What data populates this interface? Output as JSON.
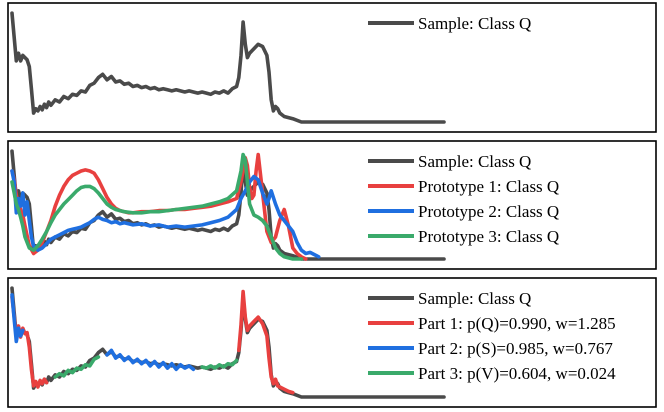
{
  "chart_data": [
    {
      "type": "line",
      "grid": false,
      "legend_position": "top-right",
      "xlim": [
        0,
        200
      ],
      "ylim": [
        0,
        1
      ],
      "series": [
        {
          "name": "Sample: Class Q",
          "color": "#4a4a4a",
          "x": [
            0,
            2,
            3,
            4,
            5,
            6,
            7,
            8,
            9,
            10,
            11,
            12,
            13,
            14,
            15,
            16,
            17,
            18,
            20,
            22,
            24,
            26,
            28,
            30,
            32,
            34,
            36,
            38,
            40,
            42,
            44,
            46,
            48,
            50,
            52,
            54,
            56,
            58,
            60,
            62,
            64,
            66,
            68,
            70,
            72,
            74,
            76,
            78,
            80,
            82,
            84,
            86,
            88,
            90,
            92,
            94,
            96,
            98,
            100,
            102,
            104,
            105,
            106,
            107,
            108,
            109,
            110,
            112,
            114,
            116,
            118,
            119,
            120,
            121,
            122,
            123,
            124,
            126,
            128,
            130,
            134,
            200
          ],
          "y": [
            0.98,
            0.55,
            0.62,
            0.55,
            0.6,
            0.58,
            0.56,
            0.5,
            0.3,
            0.08,
            0.12,
            0.1,
            0.14,
            0.11,
            0.16,
            0.13,
            0.18,
            0.15,
            0.2,
            0.18,
            0.23,
            0.21,
            0.25,
            0.24,
            0.28,
            0.27,
            0.33,
            0.35,
            0.4,
            0.43,
            0.38,
            0.41,
            0.36,
            0.37,
            0.34,
            0.35,
            0.32,
            0.33,
            0.31,
            0.32,
            0.3,
            0.31,
            0.29,
            0.3,
            0.29,
            0.28,
            0.29,
            0.28,
            0.27,
            0.28,
            0.27,
            0.26,
            0.27,
            0.26,
            0.25,
            0.27,
            0.26,
            0.28,
            0.26,
            0.3,
            0.32,
            0.4,
            0.6,
            0.9,
            0.7,
            0.58,
            0.62,
            0.66,
            0.7,
            0.68,
            0.6,
            0.45,
            0.2,
            0.1,
            0.14,
            0.12,
            0.08,
            0.05,
            0.04,
            0.03,
            0.0,
            0.0
          ]
        }
      ]
    },
    {
      "type": "line",
      "grid": false,
      "legend_position": "top-right",
      "xlim": [
        0,
        200
      ],
      "ylim": [
        0,
        1
      ],
      "series": [
        {
          "name": "Sample: Class Q",
          "color": "#4a4a4a",
          "x": [
            0,
            2,
            3,
            4,
            5,
            6,
            7,
            8,
            9,
            10,
            11,
            12,
            13,
            14,
            15,
            16,
            17,
            18,
            20,
            22,
            24,
            26,
            28,
            30,
            32,
            34,
            36,
            38,
            40,
            42,
            44,
            46,
            48,
            50,
            52,
            54,
            56,
            58,
            60,
            62,
            64,
            66,
            68,
            70,
            72,
            74,
            76,
            78,
            80,
            82,
            84,
            86,
            88,
            90,
            92,
            94,
            96,
            98,
            100,
            102,
            104,
            105,
            106,
            107,
            108,
            109,
            110,
            112,
            114,
            116,
            118,
            119,
            120,
            121,
            122,
            123,
            124,
            126,
            128,
            130,
            134,
            200
          ],
          "y": [
            0.98,
            0.55,
            0.62,
            0.55,
            0.6,
            0.58,
            0.56,
            0.5,
            0.3,
            0.08,
            0.12,
            0.1,
            0.14,
            0.11,
            0.16,
            0.13,
            0.18,
            0.15,
            0.2,
            0.18,
            0.23,
            0.21,
            0.25,
            0.24,
            0.28,
            0.27,
            0.33,
            0.35,
            0.4,
            0.43,
            0.38,
            0.41,
            0.36,
            0.37,
            0.34,
            0.35,
            0.32,
            0.33,
            0.31,
            0.32,
            0.3,
            0.31,
            0.29,
            0.3,
            0.29,
            0.28,
            0.29,
            0.28,
            0.27,
            0.28,
            0.27,
            0.26,
            0.27,
            0.26,
            0.25,
            0.27,
            0.26,
            0.28,
            0.26,
            0.3,
            0.32,
            0.4,
            0.6,
            0.9,
            0.7,
            0.58,
            0.62,
            0.66,
            0.7,
            0.68,
            0.6,
            0.45,
            0.2,
            0.1,
            0.14,
            0.12,
            0.08,
            0.05,
            0.04,
            0.03,
            0.0,
            0.0
          ]
        },
        {
          "name": "Prototype 1: Class Q",
          "color": "#e8403f",
          "x": [
            0,
            1,
            2,
            3,
            4,
            5,
            6,
            8,
            10,
            12,
            14,
            16,
            18,
            20,
            22,
            24,
            26,
            28,
            30,
            32,
            34,
            36,
            38,
            40,
            42,
            44,
            46,
            48,
            50,
            52,
            54,
            56,
            60,
            64,
            68,
            72,
            76,
            80,
            84,
            88,
            92,
            96,
            100,
            104,
            106,
            108,
            109,
            110,
            111,
            112,
            113,
            114,
            116,
            118,
            120,
            122,
            124,
            126,
            128,
            130,
            132,
            134,
            136,
            200
          ],
          "y": [
            0.8,
            0.72,
            0.58,
            0.5,
            0.45,
            0.4,
            0.3,
            0.12,
            0.05,
            0.08,
            0.15,
            0.25,
            0.35,
            0.48,
            0.58,
            0.66,
            0.72,
            0.76,
            0.78,
            0.8,
            0.81,
            0.8,
            0.78,
            0.72,
            0.64,
            0.56,
            0.5,
            0.46,
            0.44,
            0.43,
            0.42,
            0.42,
            0.43,
            0.43,
            0.44,
            0.44,
            0.45,
            0.45,
            0.46,
            0.47,
            0.48,
            0.5,
            0.52,
            0.55,
            0.7,
            0.92,
            0.85,
            0.65,
            0.55,
            0.58,
            0.8,
            0.95,
            0.6,
            0.25,
            0.15,
            0.2,
            0.35,
            0.45,
            0.3,
            0.1,
            0.05,
            0.02,
            0.0,
            0.0
          ]
        },
        {
          "name": "Prototype 2: Class Q",
          "color": "#1f6fe0",
          "x": [
            0,
            1,
            2,
            3,
            4,
            5,
            6,
            7,
            8,
            9,
            10,
            12,
            14,
            16,
            18,
            20,
            22,
            24,
            26,
            28,
            30,
            32,
            34,
            36,
            38,
            40,
            42,
            44,
            46,
            48,
            50,
            52,
            56,
            60,
            64,
            68,
            72,
            76,
            80,
            84,
            88,
            92,
            96,
            100,
            104,
            106,
            108,
            110,
            112,
            114,
            116,
            118,
            119,
            120,
            122,
            124,
            126,
            128,
            130,
            132,
            134,
            136,
            138,
            140,
            142,
            200
          ],
          "y": [
            0.8,
            0.7,
            0.42,
            0.55,
            0.48,
            0.6,
            0.4,
            0.52,
            0.35,
            0.2,
            0.12,
            0.08,
            0.1,
            0.14,
            0.18,
            0.2,
            0.22,
            0.24,
            0.26,
            0.27,
            0.28,
            0.29,
            0.31,
            0.33,
            0.36,
            0.38,
            0.36,
            0.35,
            0.33,
            0.34,
            0.32,
            0.33,
            0.31,
            0.32,
            0.3,
            0.31,
            0.29,
            0.3,
            0.29,
            0.3,
            0.31,
            0.33,
            0.35,
            0.38,
            0.45,
            0.55,
            0.62,
            0.7,
            0.75,
            0.72,
            0.6,
            0.5,
            0.55,
            0.62,
            0.5,
            0.4,
            0.35,
            0.3,
            0.25,
            0.15,
            0.08,
            0.05,
            0.06,
            0.04,
            0.02,
            0.0
          ]
        },
        {
          "name": "Prototype 3: Class Q",
          "color": "#3aaa6b",
          "x": [
            0,
            1,
            2,
            3,
            4,
            5,
            6,
            8,
            10,
            12,
            14,
            16,
            18,
            20,
            22,
            24,
            26,
            28,
            30,
            32,
            34,
            36,
            38,
            40,
            42,
            44,
            46,
            48,
            50,
            52,
            56,
            60,
            64,
            68,
            72,
            76,
            80,
            84,
            88,
            92,
            96,
            100,
            104,
            106,
            107,
            108,
            109,
            110,
            112,
            114,
            116,
            118,
            120,
            122,
            124,
            126,
            128,
            130,
            132,
            134,
            200
          ],
          "y": [
            0.7,
            0.6,
            0.5,
            0.45,
            0.38,
            0.3,
            0.2,
            0.1,
            0.08,
            0.12,
            0.18,
            0.25,
            0.33,
            0.4,
            0.45,
            0.5,
            0.54,
            0.58,
            0.62,
            0.65,
            0.66,
            0.66,
            0.64,
            0.6,
            0.55,
            0.5,
            0.47,
            0.45,
            0.44,
            0.43,
            0.42,
            0.42,
            0.43,
            0.43,
            0.44,
            0.45,
            0.46,
            0.47,
            0.48,
            0.5,
            0.52,
            0.55,
            0.62,
            0.8,
            0.95,
            0.9,
            0.7,
            0.5,
            0.4,
            0.38,
            0.35,
            0.3,
            0.2,
            0.1,
            0.05,
            0.02,
            0.01,
            0.0,
            0.0,
            0.0,
            0.0
          ]
        }
      ]
    },
    {
      "type": "line",
      "grid": false,
      "legend_position": "top-right",
      "xlim": [
        0,
        200
      ],
      "ylim": [
        0,
        1
      ],
      "series": [
        {
          "name": "Sample: Class Q",
          "color": "#4a4a4a",
          "x": [
            0,
            2,
            3,
            4,
            5,
            6,
            7,
            8,
            9,
            10,
            11,
            12,
            13,
            14,
            15,
            16,
            17,
            18,
            20,
            22,
            24,
            26,
            28,
            30,
            32,
            34,
            36,
            38,
            40,
            42,
            44,
            46,
            48,
            50,
            52,
            54,
            56,
            58,
            60,
            62,
            64,
            66,
            68,
            70,
            72,
            74,
            76,
            78,
            80,
            82,
            84,
            86,
            88,
            90,
            92,
            94,
            96,
            98,
            100,
            102,
            104,
            105,
            106,
            107,
            108,
            109,
            110,
            112,
            114,
            116,
            118,
            119,
            120,
            121,
            122,
            123,
            124,
            126,
            128,
            130,
            134,
            200
          ],
          "y": [
            0.98,
            0.55,
            0.62,
            0.55,
            0.6,
            0.58,
            0.56,
            0.5,
            0.3,
            0.08,
            0.12,
            0.1,
            0.14,
            0.11,
            0.16,
            0.13,
            0.18,
            0.15,
            0.2,
            0.18,
            0.23,
            0.21,
            0.25,
            0.24,
            0.28,
            0.27,
            0.33,
            0.35,
            0.4,
            0.43,
            0.38,
            0.41,
            0.36,
            0.37,
            0.34,
            0.35,
            0.32,
            0.33,
            0.31,
            0.32,
            0.3,
            0.31,
            0.29,
            0.3,
            0.29,
            0.28,
            0.29,
            0.28,
            0.27,
            0.28,
            0.27,
            0.26,
            0.27,
            0.26,
            0.25,
            0.27,
            0.26,
            0.28,
            0.26,
            0.3,
            0.32,
            0.4,
            0.6,
            0.9,
            0.7,
            0.58,
            0.62,
            0.66,
            0.7,
            0.68,
            0.6,
            0.45,
            0.2,
            0.1,
            0.14,
            0.12,
            0.08,
            0.05,
            0.04,
            0.03,
            0.0,
            0.0
          ]
        },
        {
          "name": "Part 1: p(Q)=0.990, w=1.285",
          "color": "#e8403f",
          "x": [
            0,
            2,
            3,
            4,
            5,
            6,
            7,
            8,
            9,
            10,
            11,
            12,
            13,
            14,
            15,
            16,
            105,
            106,
            107,
            108,
            109,
            110,
            112,
            114,
            116,
            118,
            119,
            120,
            121,
            122,
            123,
            124,
            126,
            128,
            130
          ],
          "y": [
            0.9,
            0.55,
            0.64,
            0.54,
            0.62,
            0.57,
            0.58,
            0.45,
            0.25,
            0.1,
            0.14,
            0.09,
            0.15,
            0.12,
            0.16,
            0.13,
            0.42,
            0.65,
            0.95,
            0.72,
            0.6,
            0.64,
            0.68,
            0.72,
            0.66,
            0.55,
            0.35,
            0.18,
            0.12,
            0.16,
            0.1,
            0.09,
            0.07,
            0.05,
            0.04
          ]
        },
        {
          "name": "Part 2: p(S)=0.985, w=0.767",
          "color": "#1f6fe0",
          "x": [
            0,
            1,
            2,
            3,
            4,
            5,
            44,
            46,
            48,
            50,
            52,
            54,
            56,
            58,
            60,
            62,
            64,
            66,
            68,
            70,
            72,
            74,
            76,
            78,
            80,
            82,
            84
          ],
          "y": [
            0.92,
            0.7,
            0.5,
            0.62,
            0.55,
            0.6,
            0.38,
            0.42,
            0.35,
            0.38,
            0.33,
            0.36,
            0.31,
            0.34,
            0.3,
            0.33,
            0.28,
            0.32,
            0.27,
            0.31,
            0.26,
            0.3,
            0.25,
            0.29,
            0.26,
            0.28,
            0.25
          ]
        },
        {
          "name": "Part 3: p(V)=0.604, w=0.024",
          "color": "#3aaa6b",
          "x": [
            20,
            22,
            24,
            26,
            28,
            30,
            32,
            34,
            36,
            38,
            40,
            88,
            90,
            92,
            94,
            96,
            98,
            100,
            102,
            104
          ],
          "y": [
            0.18,
            0.21,
            0.19,
            0.24,
            0.22,
            0.26,
            0.25,
            0.29,
            0.28,
            0.34,
            0.36,
            0.27,
            0.26,
            0.28,
            0.26,
            0.29,
            0.27,
            0.3,
            0.29,
            0.33
          ]
        }
      ]
    }
  ]
}
